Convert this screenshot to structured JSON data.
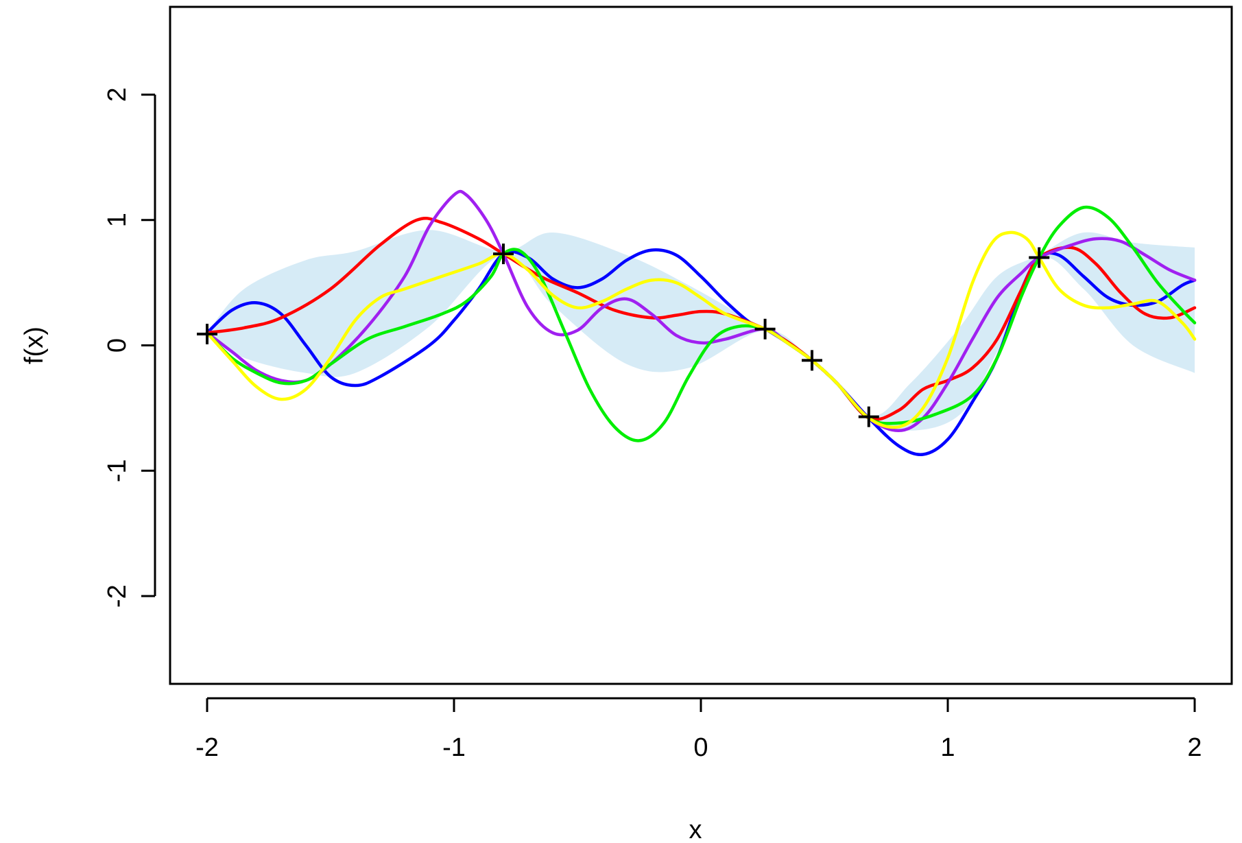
{
  "chart_data": {
    "type": "line",
    "title": "",
    "xlabel": "x",
    "ylabel": "f(x)",
    "xlim": [
      -2.15,
      2.15
    ],
    "ylim": [
      -2.7,
      2.7
    ],
    "x_ticks": [
      -2,
      -1,
      0,
      1,
      2
    ],
    "x_tick_labels": [
      "-2",
      "-1",
      "0",
      "1",
      "2"
    ],
    "y_ticks": [
      -2,
      -1,
      0,
      1,
      2
    ],
    "y_tick_labels": [
      "-2",
      "-1",
      "0",
      "1",
      "2"
    ],
    "grid": false,
    "legend": "none",
    "band": {
      "color": "#d6ebf6",
      "upper": [
        [
          -2.0,
          0.1
        ],
        [
          -1.85,
          0.45
        ],
        [
          -1.6,
          0.68
        ],
        [
          -1.4,
          0.75
        ],
        [
          -1.1,
          0.92
        ],
        [
          -0.8,
          0.75
        ],
        [
          -0.6,
          0.9
        ],
        [
          -0.3,
          0.72
        ],
        [
          -0.05,
          0.48
        ],
        [
          0.26,
          0.13
        ],
        [
          0.45,
          -0.1
        ],
        [
          0.68,
          -0.56
        ],
        [
          0.85,
          -0.3
        ],
        [
          1.05,
          0.15
        ],
        [
          1.2,
          0.55
        ],
        [
          1.37,
          0.72
        ],
        [
          1.55,
          0.9
        ],
        [
          1.75,
          0.82
        ],
        [
          2.0,
          0.78
        ]
      ],
      "lower": [
        [
          -2.0,
          0.08
        ],
        [
          -1.85,
          -0.1
        ],
        [
          -1.6,
          -0.22
        ],
        [
          -1.4,
          -0.22
        ],
        [
          -1.1,
          0.15
        ],
        [
          -0.8,
          0.72
        ],
        [
          -0.6,
          0.32
        ],
        [
          -0.3,
          -0.15
        ],
        [
          -0.05,
          -0.18
        ],
        [
          0.26,
          0.12
        ],
        [
          0.45,
          -0.12
        ],
        [
          0.68,
          -0.58
        ],
        [
          0.85,
          -0.68
        ],
        [
          1.05,
          -0.55
        ],
        [
          1.2,
          -0.05
        ],
        [
          1.37,
          0.68
        ],
        [
          1.55,
          0.45
        ],
        [
          1.75,
          0.0
        ],
        [
          2.0,
          -0.22
        ]
      ]
    },
    "series": [
      {
        "color": "#0000ff",
        "points": [
          [
            -2.0,
            0.1
          ],
          [
            -1.9,
            0.28
          ],
          [
            -1.8,
            0.34
          ],
          [
            -1.7,
            0.25
          ],
          [
            -1.6,
            0.0
          ],
          [
            -1.5,
            -0.25
          ],
          [
            -1.4,
            -0.32
          ],
          [
            -1.3,
            -0.25
          ],
          [
            -1.1,
            0.0
          ],
          [
            -1.0,
            0.2
          ],
          [
            -0.9,
            0.45
          ],
          [
            -0.8,
            0.73
          ],
          [
            -0.7,
            0.7
          ],
          [
            -0.6,
            0.53
          ],
          [
            -0.5,
            0.46
          ],
          [
            -0.4,
            0.53
          ],
          [
            -0.3,
            0.68
          ],
          [
            -0.2,
            0.76
          ],
          [
            -0.1,
            0.72
          ],
          [
            0.0,
            0.55
          ],
          [
            0.1,
            0.35
          ],
          [
            0.2,
            0.18
          ],
          [
            0.26,
            0.13
          ],
          [
            0.35,
            0.02
          ],
          [
            0.45,
            -0.12
          ],
          [
            0.55,
            -0.3
          ],
          [
            0.68,
            -0.58
          ],
          [
            0.8,
            -0.8
          ],
          [
            0.9,
            -0.87
          ],
          [
            1.0,
            -0.75
          ],
          [
            1.1,
            -0.45
          ],
          [
            1.2,
            -0.1
          ],
          [
            1.3,
            0.45
          ],
          [
            1.37,
            0.7
          ],
          [
            1.45,
            0.72
          ],
          [
            1.55,
            0.55
          ],
          [
            1.65,
            0.38
          ],
          [
            1.75,
            0.32
          ],
          [
            1.85,
            0.35
          ],
          [
            1.95,
            0.48
          ],
          [
            2.0,
            0.52
          ]
        ]
      },
      {
        "color": "#ff0000",
        "points": [
          [
            -2.0,
            0.1
          ],
          [
            -1.85,
            0.14
          ],
          [
            -1.7,
            0.22
          ],
          [
            -1.5,
            0.45
          ],
          [
            -1.3,
            0.8
          ],
          [
            -1.15,
            1.0
          ],
          [
            -1.05,
            0.98
          ],
          [
            -0.9,
            0.85
          ],
          [
            -0.8,
            0.73
          ],
          [
            -0.65,
            0.55
          ],
          [
            -0.5,
            0.42
          ],
          [
            -0.35,
            0.28
          ],
          [
            -0.2,
            0.22
          ],
          [
            -0.1,
            0.24
          ],
          [
            0.0,
            0.27
          ],
          [
            0.1,
            0.25
          ],
          [
            0.26,
            0.13
          ],
          [
            0.35,
            0.03
          ],
          [
            0.45,
            -0.12
          ],
          [
            0.55,
            -0.3
          ],
          [
            0.68,
            -0.58
          ],
          [
            0.8,
            -0.52
          ],
          [
            0.9,
            -0.35
          ],
          [
            1.0,
            -0.28
          ],
          [
            1.1,
            -0.18
          ],
          [
            1.2,
            0.05
          ],
          [
            1.3,
            0.45
          ],
          [
            1.37,
            0.7
          ],
          [
            1.5,
            0.78
          ],
          [
            1.6,
            0.65
          ],
          [
            1.7,
            0.42
          ],
          [
            1.8,
            0.25
          ],
          [
            1.9,
            0.22
          ],
          [
            2.0,
            0.3
          ]
        ]
      },
      {
        "color": "#a020f0",
        "points": [
          [
            -2.0,
            0.1
          ],
          [
            -1.9,
            -0.05
          ],
          [
            -1.8,
            -0.2
          ],
          [
            -1.7,
            -0.28
          ],
          [
            -1.6,
            -0.28
          ],
          [
            -1.5,
            -0.15
          ],
          [
            -1.35,
            0.15
          ],
          [
            -1.2,
            0.55
          ],
          [
            -1.1,
            0.95
          ],
          [
            -1.0,
            1.2
          ],
          [
            -0.95,
            1.2
          ],
          [
            -0.87,
            1.0
          ],
          [
            -0.8,
            0.73
          ],
          [
            -0.7,
            0.3
          ],
          [
            -0.6,
            0.1
          ],
          [
            -0.5,
            0.12
          ],
          [
            -0.4,
            0.3
          ],
          [
            -0.3,
            0.37
          ],
          [
            -0.2,
            0.25
          ],
          [
            -0.1,
            0.08
          ],
          [
            0.0,
            0.02
          ],
          [
            0.1,
            0.05
          ],
          [
            0.26,
            0.13
          ],
          [
            0.35,
            0.02
          ],
          [
            0.45,
            -0.12
          ],
          [
            0.55,
            -0.3
          ],
          [
            0.68,
            -0.58
          ],
          [
            0.8,
            -0.68
          ],
          [
            0.9,
            -0.58
          ],
          [
            1.0,
            -0.3
          ],
          [
            1.1,
            0.05
          ],
          [
            1.2,
            0.38
          ],
          [
            1.3,
            0.58
          ],
          [
            1.37,
            0.7
          ],
          [
            1.5,
            0.8
          ],
          [
            1.6,
            0.85
          ],
          [
            1.7,
            0.83
          ],
          [
            1.8,
            0.72
          ],
          [
            1.9,
            0.6
          ],
          [
            2.0,
            0.52
          ]
        ]
      },
      {
        "color": "#00ee00",
        "points": [
          [
            -2.0,
            0.1
          ],
          [
            -1.9,
            -0.1
          ],
          [
            -1.8,
            -0.22
          ],
          [
            -1.7,
            -0.3
          ],
          [
            -1.6,
            -0.28
          ],
          [
            -1.5,
            -0.15
          ],
          [
            -1.35,
            0.05
          ],
          [
            -1.2,
            0.15
          ],
          [
            -1.05,
            0.25
          ],
          [
            -0.95,
            0.35
          ],
          [
            -0.85,
            0.55
          ],
          [
            -0.8,
            0.73
          ],
          [
            -0.73,
            0.75
          ],
          [
            -0.65,
            0.55
          ],
          [
            -0.55,
            0.1
          ],
          [
            -0.45,
            -0.35
          ],
          [
            -0.35,
            -0.65
          ],
          [
            -0.25,
            -0.76
          ],
          [
            -0.15,
            -0.62
          ],
          [
            -0.05,
            -0.25
          ],
          [
            0.05,
            0.05
          ],
          [
            0.15,
            0.15
          ],
          [
            0.26,
            0.13
          ],
          [
            0.35,
            0.02
          ],
          [
            0.45,
            -0.12
          ],
          [
            0.55,
            -0.3
          ],
          [
            0.68,
            -0.58
          ],
          [
            0.8,
            -0.62
          ],
          [
            0.95,
            -0.55
          ],
          [
            1.1,
            -0.4
          ],
          [
            1.2,
            -0.1
          ],
          [
            1.3,
            0.4
          ],
          [
            1.37,
            0.7
          ],
          [
            1.45,
            0.95
          ],
          [
            1.55,
            1.1
          ],
          [
            1.65,
            1.02
          ],
          [
            1.75,
            0.78
          ],
          [
            1.85,
            0.5
          ],
          [
            1.95,
            0.28
          ],
          [
            2.0,
            0.18
          ]
        ]
      },
      {
        "color": "#ffff00",
        "points": [
          [
            -2.0,
            0.1
          ],
          [
            -1.9,
            -0.12
          ],
          [
            -1.8,
            -0.33
          ],
          [
            -1.7,
            -0.43
          ],
          [
            -1.6,
            -0.35
          ],
          [
            -1.5,
            -0.1
          ],
          [
            -1.4,
            0.2
          ],
          [
            -1.3,
            0.38
          ],
          [
            -1.2,
            0.45
          ],
          [
            -1.05,
            0.55
          ],
          [
            -0.9,
            0.65
          ],
          [
            -0.8,
            0.73
          ],
          [
            -0.7,
            0.6
          ],
          [
            -0.6,
            0.4
          ],
          [
            -0.5,
            0.3
          ],
          [
            -0.4,
            0.35
          ],
          [
            -0.3,
            0.45
          ],
          [
            -0.2,
            0.52
          ],
          [
            -0.1,
            0.5
          ],
          [
            0.0,
            0.38
          ],
          [
            0.1,
            0.25
          ],
          [
            0.26,
            0.13
          ],
          [
            0.35,
            0.02
          ],
          [
            0.45,
            -0.12
          ],
          [
            0.55,
            -0.3
          ],
          [
            0.68,
            -0.58
          ],
          [
            0.8,
            -0.65
          ],
          [
            0.9,
            -0.5
          ],
          [
            1.0,
            -0.1
          ],
          [
            1.1,
            0.5
          ],
          [
            1.18,
            0.82
          ],
          [
            1.25,
            0.9
          ],
          [
            1.32,
            0.85
          ],
          [
            1.37,
            0.7
          ],
          [
            1.45,
            0.45
          ],
          [
            1.55,
            0.32
          ],
          [
            1.65,
            0.3
          ],
          [
            1.75,
            0.33
          ],
          [
            1.85,
            0.35
          ],
          [
            1.95,
            0.18
          ],
          [
            2.0,
            0.05
          ]
        ]
      }
    ],
    "observations": {
      "marker": "+",
      "points": [
        [
          -2.0,
          0.09
        ],
        [
          -0.8,
          0.73
        ],
        [
          0.26,
          0.13
        ],
        [
          0.45,
          -0.12
        ],
        [
          0.68,
          -0.57
        ],
        [
          1.37,
          0.7
        ]
      ]
    }
  }
}
